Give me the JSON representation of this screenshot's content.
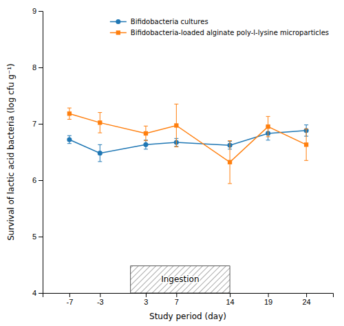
{
  "chart_data": {
    "type": "line",
    "x": [
      -7,
      -3,
      3,
      7,
      14,
      19,
      24
    ],
    "series": [
      {
        "name": "Bifidobacteria cultures",
        "marker": "circle",
        "values": [
          6.72,
          6.48,
          6.63,
          6.67,
          6.62,
          6.83,
          6.88
        ],
        "error_low": [
          0.07,
          0.15,
          0.08,
          0.07,
          0.07,
          0.12,
          0.1
        ],
        "error_high": [
          0.07,
          0.15,
          0.08,
          0.07,
          0.07,
          0.12,
          0.1
        ]
      },
      {
        "name": "Bifidobacteria-loaded alginate poly-l-lysine microparticles",
        "marker": "square",
        "values": [
          7.18,
          7.02,
          6.83,
          6.97,
          6.32,
          6.95,
          6.63
        ],
        "error_low": [
          0.1,
          0.18,
          0.13,
          0.38,
          0.38,
          0.18,
          0.28
        ],
        "error_high": [
          0.1,
          0.18,
          0.13,
          0.38,
          0.38,
          0.18,
          0.28
        ]
      }
    ],
    "xlim": [
      -10.5,
      27.5
    ],
    "xticks": [
      -7,
      -3,
      3,
      7,
      14,
      19,
      24
    ],
    "ylim": [
      4,
      9
    ],
    "yticks": [
      4,
      5,
      6,
      7,
      8,
      9
    ],
    "xlabel": "Study period (day)",
    "ylabel": "Survival of lactic acid bacteria (log cfu g⁻¹)",
    "legend": "upper right",
    "annotations": [
      {
        "text": "Ingestion",
        "x": [
          1,
          14
        ],
        "y": [
          4.0,
          4.48
        ]
      }
    ]
  }
}
